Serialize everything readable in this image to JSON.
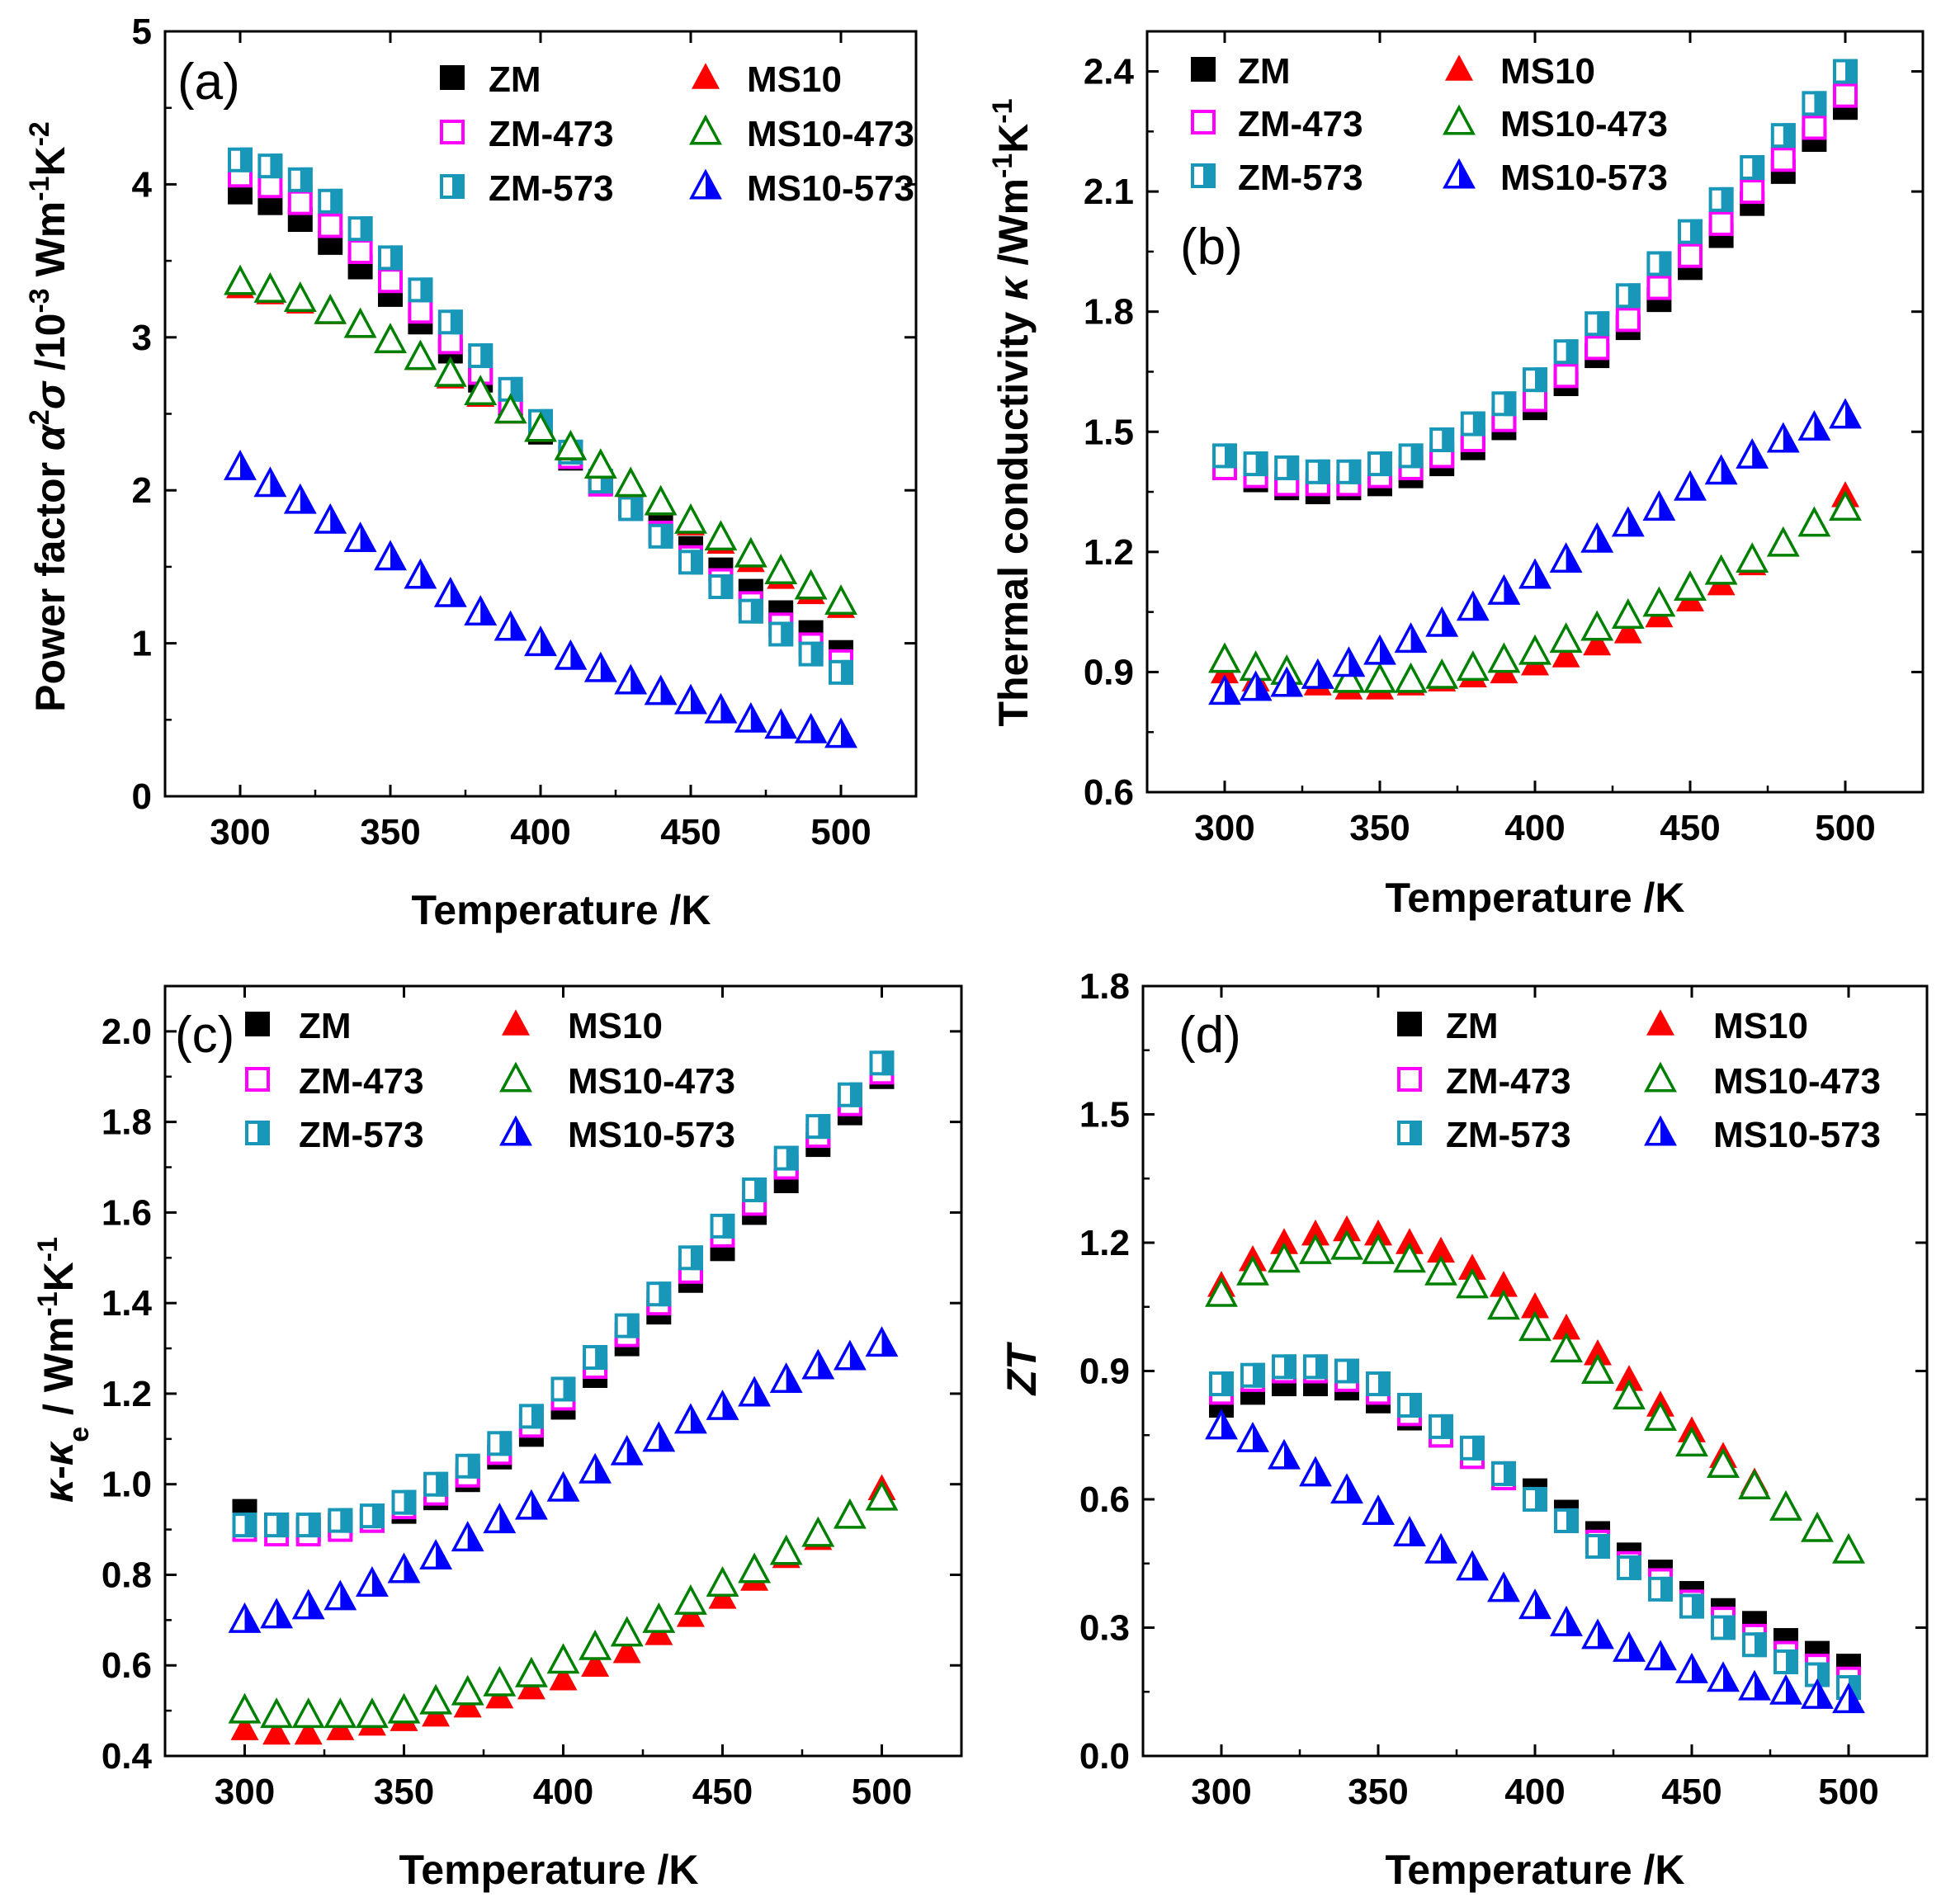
{
  "chart_data": [
    {
      "type": "scatter",
      "panel_label": "(a)",
      "title": "",
      "xlabel": "Temperature /K",
      "ylabel": "Power factor α²σ /10⁻³ Wm⁻¹K⁻²",
      "ylabel_parts": {
        "prefix": "Power factor ",
        "symbol": "α",
        "sup1": "2",
        "symbol2": "σ",
        "middle": " /10",
        "sup2": "-3",
        "unit1": " Wm",
        "sup3": "-1",
        "unit2": "K",
        "sup4": "-2"
      },
      "xlim": [
        275,
        525
      ],
      "ylim": [
        0,
        5
      ],
      "xticks": [
        300,
        350,
        400,
        450,
        500
      ],
      "yticks": [
        0,
        1,
        2,
        3,
        4,
        5
      ],
      "legend_position": "top-right",
      "x": [
        300,
        310,
        320,
        330,
        340,
        350,
        360,
        370,
        380,
        390,
        400,
        410,
        420,
        430,
        440,
        450,
        460,
        470,
        480,
        490,
        500
      ],
      "series": [
        {
          "name": "ZM",
          "marker": "filled-square",
          "color": "#000000",
          "values": [
            3.95,
            3.88,
            3.77,
            3.62,
            3.46,
            3.28,
            3.1,
            2.91,
            2.72,
            2.55,
            2.38,
            2.21,
            2.05,
            1.9,
            1.76,
            1.62,
            1.48,
            1.34,
            1.2,
            1.07,
            0.94
          ]
        },
        {
          "name": "ZM-473",
          "marker": "open-square",
          "color": "#ff00ff",
          "values": [
            4.06,
            3.99,
            3.88,
            3.73,
            3.56,
            3.37,
            3.17,
            2.97,
            2.77,
            2.58,
            2.4,
            2.22,
            2.04,
            1.88,
            1.72,
            1.56,
            1.41,
            1.26,
            1.12,
            0.99,
            0.88
          ]
        },
        {
          "name": "ZM-573",
          "marker": "half-square",
          "color": "#1897b8",
          "values": [
            4.16,
            4.12,
            4.03,
            3.89,
            3.71,
            3.52,
            3.31,
            3.1,
            2.88,
            2.66,
            2.45,
            2.25,
            2.06,
            1.88,
            1.7,
            1.53,
            1.37,
            1.21,
            1.06,
            0.93,
            0.81
          ]
        },
        {
          "name": "MS10",
          "marker": "filled-triangle",
          "color": "#ff0000",
          "values": [
            3.33,
            3.29,
            3.23,
            3.16,
            3.07,
            2.97,
            2.86,
            2.74,
            2.62,
            2.51,
            2.39,
            2.27,
            2.15,
            2.03,
            1.91,
            1.78,
            1.66,
            1.54,
            1.43,
            1.33,
            1.24
          ]
        },
        {
          "name": "MS10-473",
          "marker": "open-triangle",
          "color": "#008000",
          "values": [
            3.36,
            3.31,
            3.25,
            3.17,
            3.08,
            2.98,
            2.87,
            2.76,
            2.64,
            2.52,
            2.4,
            2.28,
            2.16,
            2.04,
            1.92,
            1.8,
            1.69,
            1.58,
            1.47,
            1.37,
            1.27
          ]
        },
        {
          "name": "MS10-573",
          "marker": "half-triangle",
          "color": "#0000ff",
          "values": [
            2.15,
            2.04,
            1.93,
            1.8,
            1.68,
            1.56,
            1.44,
            1.32,
            1.2,
            1.1,
            1.0,
            0.91,
            0.83,
            0.75,
            0.68,
            0.62,
            0.56,
            0.5,
            0.46,
            0.43,
            0.4
          ]
        }
      ]
    },
    {
      "type": "scatter",
      "panel_label": "(b)",
      "title": "",
      "xlabel": "Temperature /K",
      "ylabel": "Thermal conductivity κ /Wm⁻¹K⁻¹",
      "ylabel_parts": {
        "prefix": "Thermal conductivity ",
        "symbol": "κ",
        "unit1": " /Wm",
        "sup1": "-1",
        "unit2": "K",
        "sup2": "-1"
      },
      "xlim": [
        275,
        525
      ],
      "ylim": [
        0.6,
        2.5
      ],
      "xticks": [
        300,
        350,
        400,
        450,
        500
      ],
      "yticks": [
        0.6,
        0.9,
        1.2,
        1.5,
        1.8,
        2.1,
        2.4
      ],
      "ytick_labels": [
        "0.6",
        "0.9",
        "1.2",
        "1.5",
        "1.8",
        "2.1",
        "2.4"
      ],
      "legend_position": "top-left",
      "x": [
        300,
        310,
        320,
        330,
        340,
        350,
        360,
        370,
        380,
        390,
        400,
        410,
        420,
        430,
        440,
        450,
        460,
        470,
        480,
        490,
        500
      ],
      "series": [
        {
          "name": "ZM",
          "marker": "filled-square",
          "color": "#000000",
          "values": [
            1.41,
            1.38,
            1.36,
            1.35,
            1.36,
            1.37,
            1.39,
            1.42,
            1.46,
            1.51,
            1.56,
            1.62,
            1.69,
            1.76,
            1.83,
            1.91,
            1.99,
            2.07,
            2.15,
            2.23,
            2.31
          ]
        },
        {
          "name": "ZM-473",
          "marker": "open-square",
          "color": "#ff00ff",
          "values": [
            1.41,
            1.39,
            1.37,
            1.37,
            1.37,
            1.39,
            1.41,
            1.44,
            1.48,
            1.53,
            1.58,
            1.64,
            1.71,
            1.78,
            1.86,
            1.94,
            2.02,
            2.1,
            2.18,
            2.26,
            2.34
          ]
        },
        {
          "name": "ZM-573",
          "marker": "half-square",
          "color": "#1897b8",
          "values": [
            1.44,
            1.42,
            1.41,
            1.4,
            1.4,
            1.42,
            1.44,
            1.48,
            1.52,
            1.57,
            1.63,
            1.7,
            1.77,
            1.84,
            1.92,
            2.0,
            2.08,
            2.16,
            2.24,
            2.32,
            2.4
          ]
        },
        {
          "name": "MS10",
          "marker": "filled-triangle",
          "color": "#ff0000",
          "values": [
            0.9,
            0.88,
            0.87,
            0.87,
            0.86,
            0.86,
            0.87,
            0.88,
            0.89,
            0.9,
            0.92,
            0.94,
            0.97,
            1.0,
            1.04,
            1.08,
            1.12,
            1.17,
            1.22,
            1.27,
            1.34
          ]
        },
        {
          "name": "MS10-473",
          "marker": "open-triangle",
          "color": "#008000",
          "values": [
            0.93,
            0.91,
            0.9,
            0.89,
            0.88,
            0.88,
            0.88,
            0.89,
            0.91,
            0.93,
            0.95,
            0.98,
            1.01,
            1.04,
            1.07,
            1.11,
            1.15,
            1.18,
            1.22,
            1.27,
            1.31
          ]
        },
        {
          "name": "MS10-573",
          "marker": "half-triangle",
          "color": "#0000ff",
          "values": [
            0.85,
            0.86,
            0.87,
            0.89,
            0.92,
            0.95,
            0.98,
            1.02,
            1.06,
            1.1,
            1.14,
            1.18,
            1.23,
            1.27,
            1.31,
            1.36,
            1.4,
            1.44,
            1.48,
            1.51,
            1.54
          ]
        }
      ]
    },
    {
      "type": "scatter",
      "panel_label": "(c)",
      "title": "",
      "xlabel": "Temperature /K",
      "ylabel": "κ-κₑ / Wm⁻¹K⁻¹",
      "ylabel_parts": {
        "symbol": "κ",
        "dash": "-",
        "symbol2": "κ",
        "sub": "e",
        "unit1": " / Wm",
        "sup1": "-1",
        "unit2": "K",
        "sup2": "-1"
      },
      "xlim": [
        275,
        525
      ],
      "ylim": [
        0.4,
        2.1
      ],
      "xticks": [
        300,
        350,
        400,
        450,
        500
      ],
      "yticks": [
        0.4,
        0.6,
        0.8,
        1.0,
        1.2,
        1.4,
        1.6,
        1.8,
        2.0
      ],
      "ytick_labels": [
        "0.4",
        "0.6",
        "0.8",
        "1.0",
        "1.2",
        "1.4",
        "1.6",
        "1.8",
        "2.0"
      ],
      "legend_position": "top-left",
      "x": [
        300,
        310,
        320,
        330,
        340,
        350,
        360,
        370,
        380,
        390,
        400,
        410,
        420,
        430,
        440,
        450,
        460,
        470,
        480,
        490,
        500
      ],
      "series": [
        {
          "name": "ZM",
          "marker": "filled-square",
          "color": "#000000",
          "values": [
            0.94,
            0.91,
            0.9,
            0.91,
            0.92,
            0.94,
            0.97,
            1.01,
            1.06,
            1.11,
            1.17,
            1.24,
            1.31,
            1.38,
            1.45,
            1.52,
            1.6,
            1.67,
            1.75,
            1.82,
            1.9
          ]
        },
        {
          "name": "ZM-473",
          "marker": "open-square",
          "color": "#ff00ff",
          "values": [
            0.9,
            0.89,
            0.89,
            0.9,
            0.92,
            0.95,
            0.98,
            1.02,
            1.07,
            1.13,
            1.19,
            1.26,
            1.33,
            1.4,
            1.47,
            1.55,
            1.62,
            1.7,
            1.77,
            1.84,
            1.91
          ]
        },
        {
          "name": "ZM-573",
          "marker": "half-square",
          "color": "#1897b8",
          "values": [
            0.91,
            0.91,
            0.91,
            0.92,
            0.93,
            0.96,
            1.0,
            1.04,
            1.09,
            1.15,
            1.21,
            1.28,
            1.35,
            1.42,
            1.5,
            1.57,
            1.65,
            1.72,
            1.79,
            1.86,
            1.93
          ]
        },
        {
          "name": "MS10",
          "marker": "filled-triangle",
          "color": "#ff0000",
          "values": [
            0.46,
            0.45,
            0.45,
            0.46,
            0.47,
            0.48,
            0.49,
            0.51,
            0.53,
            0.55,
            0.57,
            0.6,
            0.63,
            0.67,
            0.71,
            0.75,
            0.79,
            0.84,
            0.88,
            0.93,
            0.99
          ]
        },
        {
          "name": "MS10-473",
          "marker": "open-triangle",
          "color": "#008000",
          "values": [
            0.5,
            0.49,
            0.49,
            0.49,
            0.49,
            0.5,
            0.52,
            0.54,
            0.56,
            0.58,
            0.61,
            0.64,
            0.67,
            0.7,
            0.74,
            0.78,
            0.81,
            0.85,
            0.89,
            0.93,
            0.97
          ]
        },
        {
          "name": "MS10-573",
          "marker": "half-triangle",
          "color": "#0000ff",
          "values": [
            0.7,
            0.71,
            0.73,
            0.75,
            0.78,
            0.81,
            0.84,
            0.88,
            0.92,
            0.95,
            0.99,
            1.03,
            1.07,
            1.1,
            1.14,
            1.17,
            1.2,
            1.23,
            1.26,
            1.28,
            1.31
          ]
        }
      ]
    },
    {
      "type": "scatter",
      "panel_label": "(d)",
      "title": "",
      "xlabel": "Temperature /K",
      "ylabel": "ZT",
      "xlim": [
        275,
        525
      ],
      "ylim": [
        0,
        1.8
      ],
      "xticks": [
        300,
        350,
        400,
        450,
        500
      ],
      "yticks": [
        0,
        0.3,
        0.6,
        0.9,
        1.2,
        1.5,
        1.8
      ],
      "ytick_labels": [
        "0.0",
        "0.3",
        "0.6",
        "0.9",
        "1.2",
        "1.5",
        "1.8"
      ],
      "legend_position": "top-right",
      "x": [
        300,
        310,
        320,
        330,
        340,
        350,
        360,
        370,
        380,
        390,
        400,
        410,
        420,
        430,
        440,
        450,
        460,
        470,
        480,
        490,
        500
      ],
      "series": [
        {
          "name": "ZM",
          "marker": "filled-square",
          "color": "#000000",
          "values": [
            0.82,
            0.85,
            0.87,
            0.87,
            0.86,
            0.83,
            0.79,
            0.75,
            0.7,
            0.66,
            0.62,
            0.57,
            0.52,
            0.47,
            0.43,
            0.38,
            0.34,
            0.31,
            0.27,
            0.24,
            0.21
          ]
        },
        {
          "name": "ZM-473",
          "marker": "open-square",
          "color": "#ff00ff",
          "values": [
            0.85,
            0.88,
            0.9,
            0.9,
            0.88,
            0.85,
            0.8,
            0.75,
            0.7,
            0.65,
            0.6,
            0.55,
            0.5,
            0.45,
            0.41,
            0.36,
            0.32,
            0.28,
            0.24,
            0.21,
            0.18
          ]
        },
        {
          "name": "ZM-573",
          "marker": "half-square",
          "color": "#1897b8",
          "values": [
            0.87,
            0.89,
            0.91,
            0.91,
            0.9,
            0.87,
            0.82,
            0.77,
            0.72,
            0.66,
            0.6,
            0.55,
            0.49,
            0.44,
            0.39,
            0.35,
            0.3,
            0.26,
            0.22,
            0.19,
            0.16
          ]
        },
        {
          "name": "MS10",
          "marker": "filled-triangle",
          "color": "#ff0000",
          "values": [
            1.1,
            1.16,
            1.2,
            1.22,
            1.23,
            1.22,
            1.2,
            1.18,
            1.14,
            1.1,
            1.05,
            1.0,
            0.94,
            0.88,
            0.82,
            0.76,
            0.7,
            0.64,
            0.58,
            0.53,
            0.48
          ]
        },
        {
          "name": "MS10-473",
          "marker": "open-triangle",
          "color": "#008000",
          "values": [
            1.08,
            1.13,
            1.16,
            1.18,
            1.19,
            1.18,
            1.16,
            1.13,
            1.1,
            1.05,
            1.0,
            0.95,
            0.9,
            0.84,
            0.79,
            0.73,
            0.68,
            0.63,
            0.58,
            0.53,
            0.48
          ]
        },
        {
          "name": "MS10-573",
          "marker": "half-triangle",
          "color": "#0000ff",
          "values": [
            0.77,
            0.74,
            0.7,
            0.66,
            0.62,
            0.57,
            0.52,
            0.48,
            0.44,
            0.39,
            0.35,
            0.31,
            0.28,
            0.25,
            0.23,
            0.2,
            0.18,
            0.16,
            0.15,
            0.14,
            0.13
          ]
        }
      ]
    }
  ]
}
